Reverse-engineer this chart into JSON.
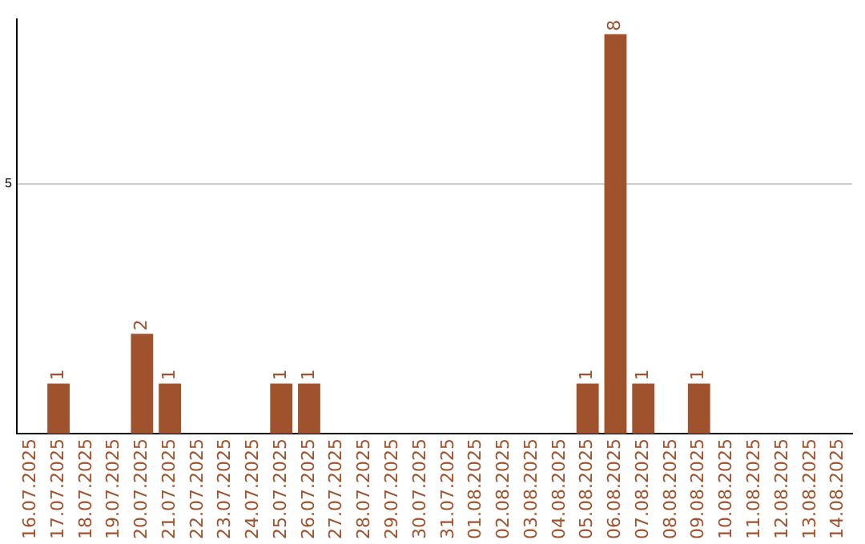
{
  "chart_data": {
    "type": "bar",
    "categories": [
      "16.07.2025",
      "17.07.2025",
      "18.07.2025",
      "19.07.2025",
      "20.07.2025",
      "21.07.2025",
      "22.07.2025",
      "23.07.2025",
      "24.07.2025",
      "25.07.2025",
      "26.07.2025",
      "27.07.2025",
      "28.07.2025",
      "29.07.2025",
      "30.07.2025",
      "31.07.2025",
      "01.08.2025",
      "02.08.2025",
      "03.08.2025",
      "04.08.2025",
      "05.08.2025",
      "06.08.2025",
      "07.08.2025",
      "08.08.2025",
      "09.08.2025",
      "10.08.2025",
      "11.08.2025",
      "12.08.2025",
      "13.08.2025",
      "14.08.2025"
    ],
    "values": [
      0,
      1,
      0,
      0,
      2,
      1,
      0,
      0,
      0,
      1,
      1,
      0,
      0,
      0,
      0,
      0,
      0,
      0,
      0,
      0,
      1,
      8,
      1,
      0,
      1,
      0,
      0,
      0,
      0,
      0
    ],
    "value_labels": [
      null,
      "1",
      null,
      null,
      "2",
      "1",
      null,
      null,
      null,
      "1",
      "1",
      null,
      null,
      null,
      null,
      null,
      null,
      null,
      null,
      null,
      "1",
      "8",
      "1",
      null,
      "1",
      null,
      null,
      null,
      null,
      null
    ],
    "color": "#a0522d",
    "ylim": [
      0,
      8.3
    ],
    "yticks": [
      5
    ],
    "grid": "y",
    "legend": false
  }
}
